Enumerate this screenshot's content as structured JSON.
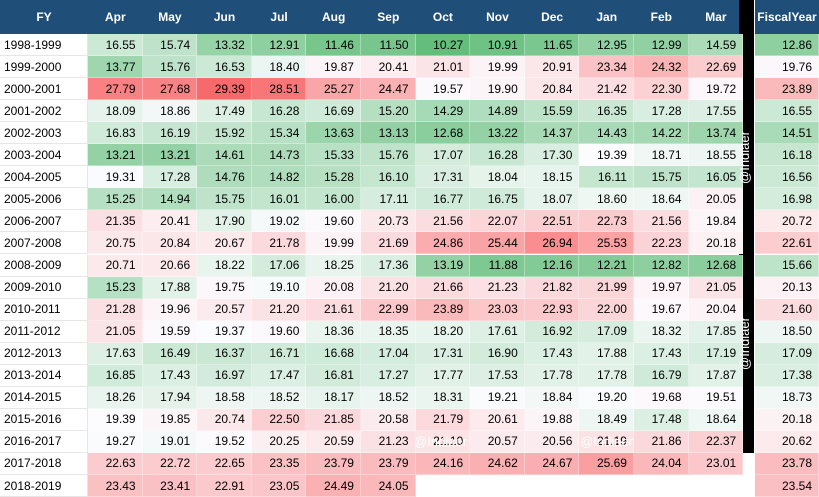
{
  "header": {
    "fy_label": "FY",
    "months": [
      "Apr",
      "May",
      "Jun",
      "Jul",
      "Aug",
      "Sep",
      "Oct",
      "Nov",
      "Dec",
      "Jan",
      "Feb",
      "Mar"
    ],
    "fiscal_line1": "Fiscal",
    "fiscal_line2": "Year"
  },
  "watermark": "@Indiaer",
  "colors": {
    "header_bg": "#1f4e79",
    "low": "#63be7b",
    "mid": "#fcfcff",
    "high": "#f8696b",
    "divider": "#000000"
  },
  "chart_data": {
    "type": "table",
    "color_scale": {
      "min": 10.27,
      "max": 29.39,
      "mid": 19.4
    },
    "columns": [
      "FY",
      "Apr",
      "May",
      "Jun",
      "Jul",
      "Aug",
      "Sep",
      "Oct",
      "Nov",
      "Dec",
      "Jan",
      "Feb",
      "Mar",
      "Fiscal Year"
    ],
    "rows": [
      {
        "fy": "1998-1999",
        "months": [
          "16.55",
          "15.74",
          "13.32",
          "12.91",
          "11.46",
          "11.50",
          "10.27",
          "10.91",
          "11.65",
          "12.95",
          "12.99",
          "14.59"
        ],
        "fiscal": "12.86"
      },
      {
        "fy": "1999-2000",
        "months": [
          "13.77",
          "15.76",
          "16.53",
          "18.40",
          "19.87",
          "20.41",
          "21.01",
          "19.99",
          "20.91",
          "23.34",
          "24.32",
          "22.69"
        ],
        "fiscal": "19.76"
      },
      {
        "fy": "2000-2001",
        "months": [
          "27.79",
          "27.68",
          "29.39",
          "28.51",
          "25.27",
          "24.47",
          "19.57",
          "19.90",
          "20.84",
          "21.42",
          "22.30",
          "19.72"
        ],
        "fiscal": "23.89"
      },
      {
        "fy": "2001-2002",
        "months": [
          "18.09",
          "18.86",
          "17.49",
          "16.28",
          "16.69",
          "15.20",
          "14.29",
          "14.89",
          "15.59",
          "16.35",
          "17.28",
          "17.55"
        ],
        "fiscal": "16.55"
      },
      {
        "fy": "2002-2003",
        "months": [
          "16.83",
          "16.19",
          "15.92",
          "15.34",
          "13.63",
          "13.13",
          "12.68",
          "13.22",
          "14.37",
          "14.43",
          "14.22",
          "13.74"
        ],
        "fiscal": "14.51"
      },
      {
        "fy": "2003-2004",
        "months": [
          "13.21",
          "13.21",
          "14.61",
          "14.73",
          "15.33",
          "15.76",
          "17.07",
          "16.28",
          "17.30",
          "19.39",
          "18.71",
          "18.55"
        ],
        "fiscal": "16.18"
      },
      {
        "fy": "2004-2005",
        "months": [
          "19.31",
          "17.28",
          "14.76",
          "14.82",
          "15.28",
          "16.10",
          "17.31",
          "18.04",
          "18.15",
          "16.11",
          "15.75",
          "16.05"
        ],
        "fiscal": "16.56"
      },
      {
        "fy": "2005-2006",
        "months": [
          "15.25",
          "14.94",
          "15.75",
          "16.01",
          "16.00",
          "17.11",
          "16.77",
          "16.75",
          "18.07",
          "18.60",
          "18.64",
          "20.05"
        ],
        "fiscal": "16.98"
      },
      {
        "fy": "2006-2007",
        "months": [
          "21.35",
          "20.41",
          "17.90",
          "19.02",
          "19.60",
          "20.73",
          "21.56",
          "22.07",
          "22.51",
          "22.73",
          "21.56",
          "19.84"
        ],
        "fiscal": "20.72"
      },
      {
        "fy": "2007-2008",
        "months": [
          "20.75",
          "20.84",
          "20.67",
          "21.78",
          "19.99",
          "21.69",
          "24.86",
          "25.44",
          "26.94",
          "25.53",
          "22.23",
          "20.18"
        ],
        "fiscal": "22.61"
      },
      {
        "fy": "2008-2009",
        "months": [
          "20.71",
          "20.66",
          "18.22",
          "17.06",
          "18.25",
          "17.36",
          "13.19",
          "11.88",
          "12.16",
          "12.21",
          "12.82",
          "12.68"
        ],
        "fiscal": "15.66"
      },
      {
        "fy": "2009-2010",
        "months": [
          "15.23",
          "17.88",
          "19.75",
          "19.10",
          "20.08",
          "21.20",
          "21.66",
          "21.23",
          "21.82",
          "21.99",
          "19.97",
          "21.05"
        ],
        "fiscal": "20.13"
      },
      {
        "fy": "2010-2011",
        "months": [
          "21.28",
          "19.96",
          "20.57",
          "21.20",
          "21.61",
          "22.99",
          "23.89",
          "23.03",
          "22.93",
          "22.00",
          "19.67",
          "20.04"
        ],
        "fiscal": "21.60"
      },
      {
        "fy": "2011-2012",
        "months": [
          "21.05",
          "19.59",
          "19.37",
          "19.60",
          "18.36",
          "18.35",
          "18.20",
          "17.61",
          "16.92",
          "17.09",
          "18.32",
          "17.85"
        ],
        "fiscal": "18.50"
      },
      {
        "fy": "2012-2013",
        "months": [
          "17.63",
          "16.49",
          "16.37",
          "16.71",
          "16.68",
          "17.04",
          "17.31",
          "16.90",
          "17.43",
          "17.88",
          "17.43",
          "17.19"
        ],
        "fiscal": "17.09"
      },
      {
        "fy": "2013-2014",
        "months": [
          "16.85",
          "17.43",
          "16.97",
          "17.47",
          "16.81",
          "17.27",
          "17.77",
          "17.53",
          "17.78",
          "17.78",
          "16.79",
          "17.87"
        ],
        "fiscal": "17.38"
      },
      {
        "fy": "2014-2015",
        "months": [
          "18.26",
          "17.94",
          "18.58",
          "18.52",
          "18.17",
          "18.52",
          "18.31",
          "19.21",
          "18.84",
          "19.20",
          "19.68",
          "19.51"
        ],
        "fiscal": "18.73"
      },
      {
        "fy": "2015-2016",
        "months": [
          "19.39",
          "19.85",
          "20.74",
          "22.50",
          "21.85",
          "20.58",
          "21.79",
          "20.61",
          "19.88",
          "18.49",
          "17.48",
          "18.64"
        ],
        "fiscal": "20.18"
      },
      {
        "fy": "2016-2017",
        "months": [
          "19.27",
          "19.01",
          "19.52",
          "20.25",
          "20.59",
          "21.23",
          "21.10",
          "20.57",
          "20.56",
          "21.19",
          "21.86",
          "22.37"
        ],
        "fiscal": "20.62"
      },
      {
        "fy": "2017-2018",
        "months": [
          "22.63",
          "22.72",
          "22.65",
          "23.35",
          "23.79",
          "23.79",
          "24.16",
          "24.62",
          "24.67",
          "25.69",
          "24.04",
          "23.01"
        ],
        "fiscal": "23.78"
      },
      {
        "fy": "2018-2019",
        "months": [
          "23.43",
          "23.41",
          "22.91",
          "23.05",
          "24.49",
          "24.05",
          "",
          "",
          "",
          "",
          "",
          ""
        ],
        "fiscal": "23.54"
      }
    ]
  }
}
